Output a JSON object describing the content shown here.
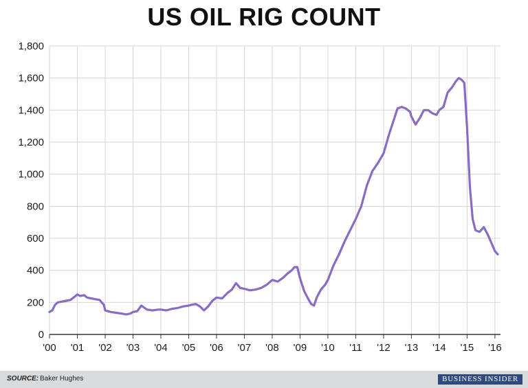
{
  "chart_data": {
    "type": "line",
    "title": "US OIL RIG COUNT",
    "xlabel": "",
    "ylabel": "",
    "ylim": [
      0,
      1800
    ],
    "y_ticks": [
      0,
      200,
      400,
      600,
      800,
      1000,
      1200,
      1400,
      1600,
      1800
    ],
    "y_tick_labels": [
      "0",
      "200",
      "400",
      "600",
      "800",
      "1,000",
      "1,200",
      "1,400",
      "1,600",
      "1,800"
    ],
    "xlim": [
      2000.0,
      2016.2
    ],
    "x_ticks": [
      2000,
      2001,
      2002,
      2003,
      2004,
      2005,
      2006,
      2007,
      2008,
      2009,
      2010,
      2011,
      2012,
      2013,
      2014,
      2015,
      2016
    ],
    "x_tick_labels": [
      "'00",
      "'01",
      "'02",
      "'03",
      "'04",
      "'05",
      "'06",
      "'07",
      "'08",
      "'09",
      "'10",
      "'11",
      "'12",
      "'13",
      "'14",
      "'15",
      "'16"
    ],
    "grid": true,
    "line_color": "#8a6bc4",
    "series": [
      {
        "name": "",
        "x": [
          2000.0,
          2000.1,
          2000.2,
          2000.3,
          2000.45,
          2000.6,
          2000.75,
          2000.9,
          2001.0,
          2001.1,
          2001.25,
          2001.35,
          2001.5,
          2001.65,
          2001.8,
          2001.95,
          2002.0,
          2002.2,
          2002.4,
          2002.6,
          2002.75,
          2002.9,
          2003.0,
          2003.15,
          2003.3,
          2003.5,
          2003.7,
          2003.9,
          2004.0,
          2004.2,
          2004.4,
          2004.6,
          2004.8,
          2005.0,
          2005.1,
          2005.25,
          2005.4,
          2005.55,
          2005.7,
          2005.85,
          2006.0,
          2006.2,
          2006.4,
          2006.55,
          2006.7,
          2006.85,
          2007.0,
          2007.2,
          2007.4,
          2007.6,
          2007.8,
          2008.0,
          2008.2,
          2008.4,
          2008.55,
          2008.7,
          2008.8,
          2008.9,
          2009.0,
          2009.15,
          2009.3,
          2009.4,
          2009.5,
          2009.6,
          2009.75,
          2009.9,
          2010.0,
          2010.2,
          2010.4,
          2010.6,
          2010.8,
          2011.0,
          2011.2,
          2011.4,
          2011.6,
          2011.8,
          2012.0,
          2012.2,
          2012.35,
          2012.5,
          2012.65,
          2012.8,
          2012.95,
          2013.0,
          2013.15,
          2013.3,
          2013.45,
          2013.6,
          2013.75,
          2013.9,
          2014.0,
          2014.15,
          2014.3,
          2014.45,
          2014.6,
          2014.7,
          2014.8,
          2014.9,
          2015.0,
          2015.1,
          2015.2,
          2015.3,
          2015.45,
          2015.6,
          2015.75,
          2015.9,
          2016.0,
          2016.1
        ],
        "values": [
          140,
          150,
          185,
          200,
          205,
          210,
          215,
          235,
          250,
          240,
          245,
          230,
          225,
          220,
          215,
          185,
          150,
          140,
          135,
          130,
          125,
          130,
          140,
          145,
          180,
          155,
          150,
          155,
          155,
          150,
          160,
          165,
          175,
          180,
          185,
          190,
          175,
          150,
          175,
          210,
          230,
          225,
          260,
          280,
          320,
          290,
          285,
          275,
          280,
          290,
          310,
          340,
          330,
          355,
          380,
          400,
          420,
          420,
          350,
          270,
          220,
          190,
          180,
          230,
          280,
          310,
          340,
          430,
          500,
          580,
          650,
          720,
          800,
          930,
          1020,
          1070,
          1130,
          1250,
          1330,
          1410,
          1420,
          1410,
          1390,
          1360,
          1310,
          1350,
          1400,
          1400,
          1380,
          1370,
          1400,
          1420,
          1510,
          1540,
          1580,
          1600,
          1590,
          1570,
          1290,
          920,
          720,
          650,
          640,
          670,
          620,
          560,
          520,
          500
        ]
      }
    ]
  },
  "footer": {
    "source_label": "SOURCE:",
    "source_value": "Baker Hughes",
    "brand": "BUSINESS INSIDER"
  }
}
